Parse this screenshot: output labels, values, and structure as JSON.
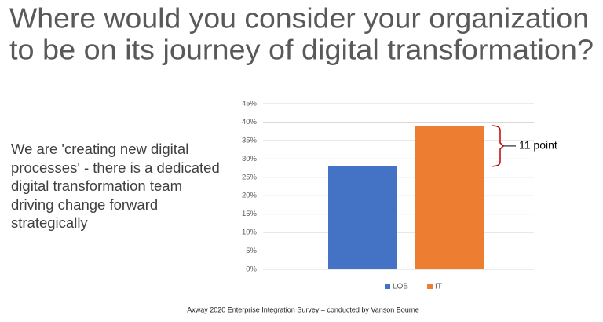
{
  "chart_data": {
    "type": "bar",
    "title": [
      "Where would you consider your organization",
      "to be on its journey of digital transformation?"
    ],
    "description": "We are 'creating new digital processes' - there is a dedicated digital transformation team driving change forward strategically",
    "categories": [
      null
    ],
    "series": [
      {
        "name": "LOB",
        "color": "#4472c4",
        "values": [
          28
        ]
      },
      {
        "name": "IT",
        "color": "#ed7d31",
        "values": [
          39
        ]
      }
    ],
    "ylim": [
      0,
      45
    ],
    "yticks": [
      {
        "value": 0,
        "label": "0%"
      },
      {
        "value": 5,
        "label": "5%"
      },
      {
        "value": 10,
        "label": "10%"
      },
      {
        "value": 15,
        "label": "15%"
      },
      {
        "value": 20,
        "label": "20%"
      },
      {
        "value": 25,
        "label": "25%"
      },
      {
        "value": 30,
        "label": "30%"
      },
      {
        "value": 35,
        "label": "35%"
      },
      {
        "value": 40,
        "label": "40%"
      },
      {
        "value": 45,
        "label": "45%"
      }
    ],
    "grid": true,
    "legend": "bottom",
    "annotation": "11 point",
    "source": "Axway 2020 Enterprise Integration Survey – conducted by Vanson Bourne"
  }
}
